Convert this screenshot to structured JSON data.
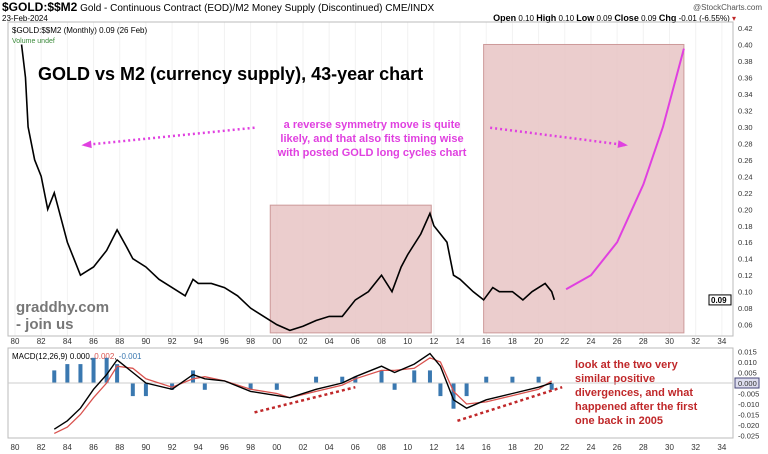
{
  "header": {
    "symbol": "$GOLD:$$M2",
    "description": "Gold - Continuous Contract (EOD)/M2 Money Supply (Discontinued)",
    "exchange": "CME/INDX",
    "date": "23-Feb-2024",
    "brand": "@StockCharts.com",
    "ohlc": {
      "open_label": "Open",
      "open": "0.10",
      "high_label": "High",
      "high": "0.10",
      "low_label": "Low",
      "low": "0.09",
      "close_label": "Close",
      "close": "0.09",
      "chg_label": "Chg",
      "chg": "-0.01 (-6.55%)"
    },
    "legend": "$GOLD:$$M2 (Monthly) 0.09 (26 Feb)",
    "volume": "Volume undef"
  },
  "colors": {
    "price": "#000000",
    "shade": "#e8c4c4",
    "magenta": "#e040e0",
    "macd": "#000000",
    "signal": "#d9534f",
    "histogram": "#3a78b0",
    "annotation_red": "#c0282a",
    "watermark": "#777777"
  },
  "chart_data": [
    {
      "type": "line",
      "title": "GOLD vs M2 (currency supply), 43-year chart",
      "ylim": [
        0.05,
        0.42
      ],
      "yticks": [
        0.06,
        0.08,
        0.1,
        0.12,
        0.14,
        0.16,
        0.18,
        0.2,
        0.22,
        0.24,
        0.26,
        0.28,
        0.3,
        0.32,
        0.34,
        0.36,
        0.38,
        0.4,
        0.42
      ],
      "ytick_labels": [
        "0.06",
        "0.08",
        "0.10",
        "0.12",
        "0.14",
        "0.16",
        "0.18",
        "0.20",
        "0.22",
        "0.24",
        "0.26",
        "0.28",
        "0.30",
        "0.32",
        "0.34",
        "0.36",
        "0.38",
        "0.40",
        "0.42"
      ],
      "last_value_label": "0.09",
      "xticks": [
        1980,
        1982,
        1984,
        1986,
        1988,
        1990,
        1992,
        1994,
        1996,
        1998,
        2000,
        2002,
        2004,
        2006,
        2008,
        2010,
        2012,
        2014,
        2016,
        2018,
        2020,
        2022,
        2024,
        2026,
        2028,
        2030,
        2032,
        2034
      ],
      "xtick_labels": [
        "80",
        "82",
        "84",
        "86",
        "88",
        "90",
        "92",
        "94",
        "96",
        "98",
        "00",
        "02",
        "04",
        "06",
        "08",
        "10",
        "12",
        "14",
        "16",
        "18",
        "20",
        "22",
        "24",
        "26",
        "28",
        "30",
        "32",
        "34"
      ],
      "series": [
        {
          "x": [
            1980.5,
            1980.8,
            1981,
            1981.5,
            1982,
            1982.5,
            1983,
            1983.5,
            1984,
            1984.5,
            1985,
            1985.5,
            1986,
            1987,
            1987.8,
            1988.5,
            1989,
            1990,
            1991,
            1992,
            1993,
            1993.6,
            1994,
            1995,
            1996,
            1997,
            1998,
            1999,
            2000,
            2001,
            2002,
            2003,
            2004,
            2005,
            2006,
            2007,
            2008,
            2008.8,
            2009.5,
            2010,
            2011,
            2011.7,
            2012,
            2013,
            2013.5,
            2014,
            2015,
            2015.8,
            2016.5,
            2017,
            2018,
            2018.8,
            2019.5,
            2020.5,
            2021,
            2021.2
          ],
          "y": [
            0.4,
            0.36,
            0.3,
            0.26,
            0.24,
            0.2,
            0.22,
            0.19,
            0.16,
            0.14,
            0.12,
            0.125,
            0.13,
            0.15,
            0.175,
            0.155,
            0.14,
            0.13,
            0.115,
            0.105,
            0.095,
            0.115,
            0.11,
            0.11,
            0.105,
            0.095,
            0.08,
            0.07,
            0.06,
            0.053,
            0.058,
            0.065,
            0.07,
            0.07,
            0.09,
            0.1,
            0.12,
            0.1,
            0.13,
            0.145,
            0.17,
            0.195,
            0.18,
            0.16,
            0.12,
            0.115,
            0.1,
            0.09,
            0.105,
            0.1,
            0.1,
            0.09,
            0.1,
            0.11,
            0.1,
            0.09
          ]
        }
      ],
      "shaded_regions": [
        {
          "x": [
            1999.5,
            2011.8
          ],
          "y": [
            0.05,
            0.205
          ]
        },
        {
          "x": [
            2015.8,
            2031.1
          ],
          "y": [
            0.05,
            0.4
          ]
        }
      ],
      "projection_curve": {
        "x": [
          2022.1,
          2024,
          2026,
          2028,
          2029.5,
          2031.1
        ],
        "y": [
          0.103,
          0.12,
          0.16,
          0.23,
          0.3,
          0.395
        ]
      },
      "arrows": [
        {
          "from": [
            1998.3,
            0.299
          ],
          "to": [
            1985.3,
            0.278
          ]
        },
        {
          "from": [
            2016.3,
            0.299
          ],
          "to": [
            2026.6,
            0.278
          ]
        }
      ],
      "annotation": [
        "a reverse symmetry move is quite",
        "likely, and that also fits timing wise",
        "with posted GOLD long cycles chart"
      ],
      "watermark": [
        "graddhy.com",
        "- join us"
      ]
    },
    {
      "type": "line",
      "label": "MACD(12,26,9)",
      "values_label": {
        "macd": "0.000",
        "signal": "0.002",
        "histogram": "-0.001"
      },
      "ylim": [
        -0.027,
        0.017
      ],
      "yticks": [
        0.015,
        0.01,
        0.005,
        0,
        -0.005,
        -0.01,
        -0.015,
        -0.02,
        -0.025
      ],
      "ytick_labels": [
        "0.015",
        "0.010",
        "0.005",
        "0.000",
        "-0.005",
        "-0.010",
        "-0.015",
        "-0.020",
        "-0.025"
      ],
      "x": [
        1983,
        1984,
        1985,
        1986,
        1987,
        1987.8,
        1989,
        1990,
        1992,
        1993.6,
        1994.5,
        1996,
        1998,
        2000,
        2001,
        2003,
        2005,
        2006,
        2008,
        2009,
        2010.5,
        2011.7,
        2012.5,
        2013.5,
        2014.5,
        2016,
        2018,
        2020,
        2021
      ],
      "macd": [
        -0.022,
        -0.018,
        -0.012,
        -0.003,
        0.004,
        0.011,
        0.005,
        0.0,
        -0.003,
        0.004,
        0.002,
        0.001,
        -0.004,
        -0.006,
        -0.007,
        -0.003,
        0.0,
        0.003,
        0.008,
        0.005,
        0.009,
        0.014,
        0.008,
        -0.008,
        -0.012,
        -0.008,
        -0.005,
        -0.002,
        0.0
      ],
      "signal": [
        -0.024,
        -0.021,
        -0.015,
        -0.007,
        0.0,
        0.008,
        0.007,
        0.002,
        -0.002,
        0.002,
        0.003,
        0.001,
        -0.003,
        -0.005,
        -0.007,
        -0.004,
        -0.001,
        0.002,
        0.006,
        0.006,
        0.007,
        0.012,
        0.01,
        -0.004,
        -0.01,
        -0.009,
        -0.006,
        -0.003,
        0.001
      ],
      "trendlines": [
        {
          "from": [
            1998.3,
            -0.014
          ],
          "to": [
            2006,
            -0.002
          ]
        },
        {
          "from": [
            2013.8,
            -0.018
          ],
          "to": [
            2021.8,
            -0.002
          ]
        }
      ],
      "annotation": [
        "look at the two very",
        "similar positive",
        "divergences, and what",
        "happened after the first",
        "one back in 2005"
      ]
    }
  ]
}
